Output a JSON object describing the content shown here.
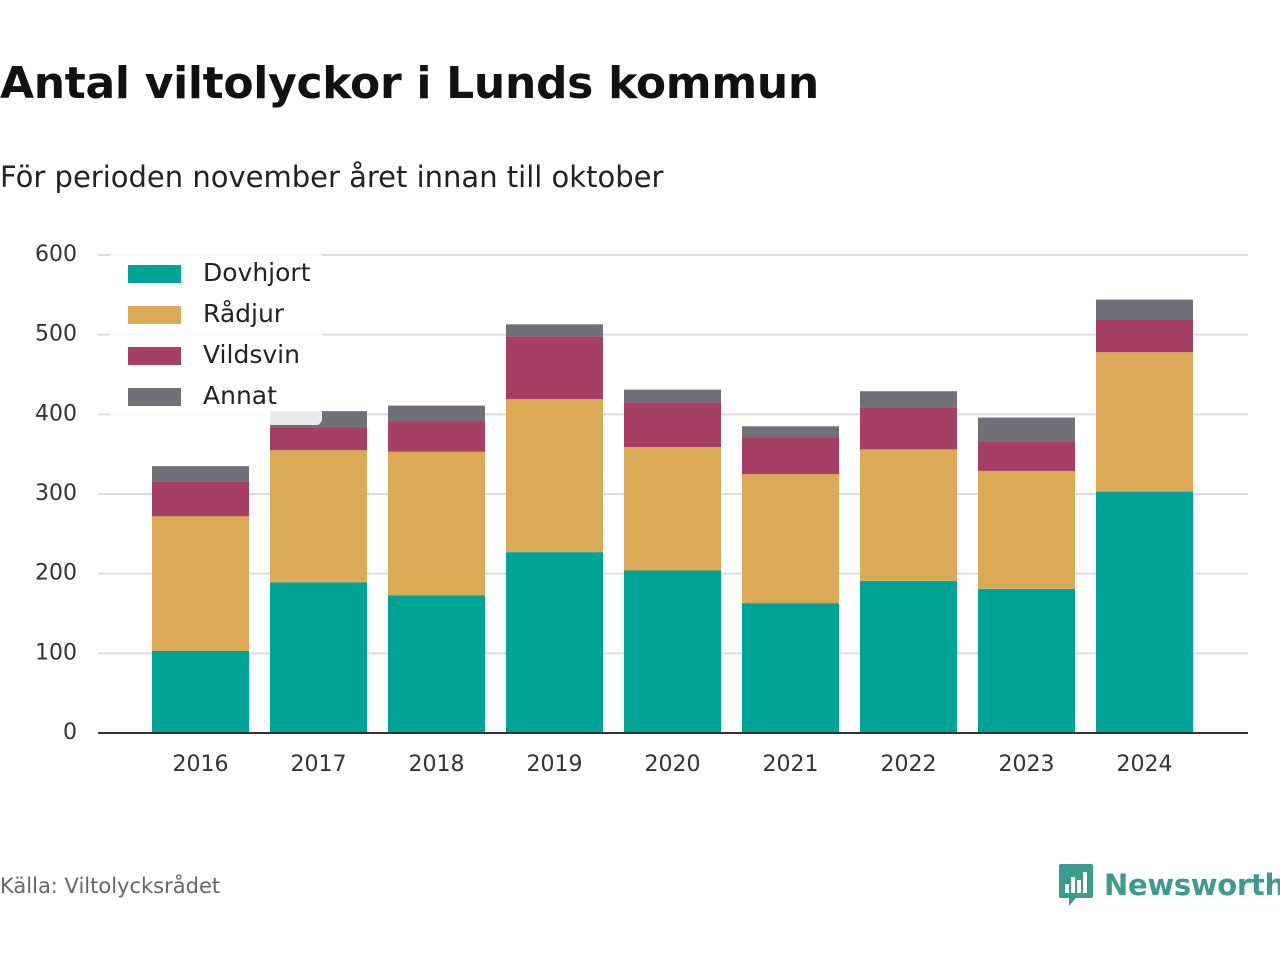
{
  "title": "Antal viltolyckor i Lunds kommun",
  "subtitle": "För perioden november året innan till oktober",
  "source": "Källa: Viltolycksrådet",
  "brand": {
    "name": "Newsworthy",
    "icon": "newsworthy-logo-icon",
    "color": "#3e9a8e"
  },
  "chart_data": {
    "type": "bar",
    "stacked": true,
    "title": "Antal viltolyckor i Lunds kommun",
    "subtitle": "För perioden november året innan till oktober",
    "categories": [
      "2016",
      "2017",
      "2018",
      "2019",
      "2020",
      "2021",
      "2022",
      "2023",
      "2024"
    ],
    "series": [
      {
        "name": "Dovhjort",
        "color": "#00a497",
        "values": [
          103,
          189,
          173,
          227,
          204,
          163,
          191,
          181,
          303
        ]
      },
      {
        "name": "Rådjur",
        "color": "#dbaa57",
        "values": [
          169,
          166,
          180,
          192,
          155,
          162,
          165,
          148,
          175
        ]
      },
      {
        "name": "Vildsvin",
        "color": "#a53f64",
        "values": [
          44,
          29,
          38,
          79,
          56,
          46,
          52,
          37,
          41
        ]
      },
      {
        "name": "Annat",
        "color": "#717077",
        "values": [
          19,
          20,
          20,
          15,
          16,
          14,
          21,
          30,
          25
        ]
      }
    ],
    "yticks": [
      0,
      100,
      200,
      300,
      400,
      500,
      600
    ],
    "ylim": [
      0,
      600
    ],
    "grid": true,
    "legend": "top-left"
  }
}
